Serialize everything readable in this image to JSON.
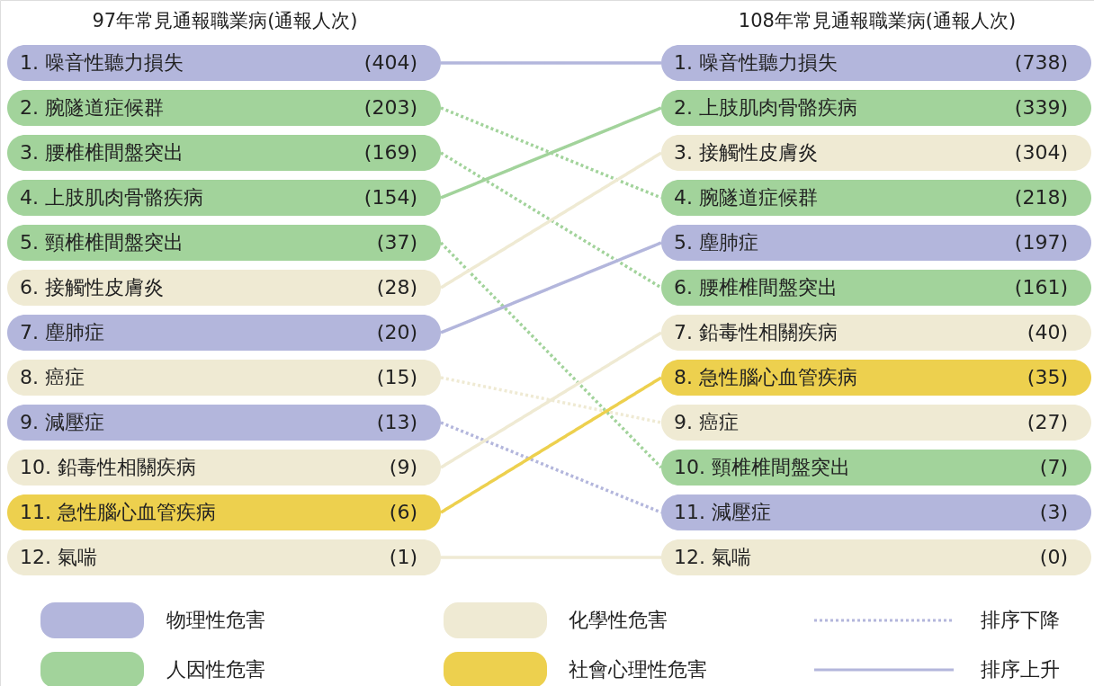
{
  "chart_data": {
    "type": "other",
    "categories": [
      "97年常見通報職業病(通報人次)",
      "108年常見通報職業病(通報人次)"
    ],
    "series": [
      {
        "name": "噪音性聽力損失",
        "color": "#b3b6dc",
        "line_style": "solid",
        "values": [
          404,
          738
        ],
        "value_labels": [
          "(404)",
          "(738)"
        ]
      },
      {
        "name": "腕隧道症候群",
        "color": "#a2d39b",
        "line_style": "dotted",
        "values": [
          203,
          218
        ],
        "value_labels": [
          "(203)",
          "(218)"
        ]
      },
      {
        "name": "腰椎椎間盤突出",
        "color": "#a2d39b",
        "line_style": "dotted",
        "values": [
          169,
          161
        ],
        "value_labels": [
          "(169)",
          "(161)"
        ]
      },
      {
        "name": "上肢肌肉骨骼疾病",
        "color": "#a2d39b",
        "line_style": "solid",
        "values": [
          154,
          339
        ],
        "value_labels": [
          "(154)",
          "(339)"
        ]
      },
      {
        "name": "頸椎椎間盤突出",
        "color": "#a2d39b",
        "line_style": "dotted",
        "values": [
          37,
          7
        ],
        "value_labels": [
          "(37)",
          "(7)"
        ]
      },
      {
        "name": "接觸性皮膚炎",
        "color": "#efead3",
        "line_style": "solid",
        "values": [
          28,
          304
        ],
        "value_labels": [
          "(28)",
          "(304)"
        ]
      },
      {
        "name": "塵肺症",
        "color": "#b3b6dc",
        "line_style": "solid",
        "values": [
          20,
          197
        ],
        "value_labels": [
          "(20)",
          "(197)"
        ]
      },
      {
        "name": "癌症",
        "color": "#efead3",
        "line_style": "dotted",
        "values": [
          15,
          27
        ],
        "value_labels": [
          "(15)",
          "(27)"
        ]
      },
      {
        "name": "減壓症",
        "color": "#b3b6dc",
        "line_style": "dotted",
        "values": [
          13,
          3
        ],
        "value_labels": [
          "(13)",
          "(3)"
        ]
      },
      {
        "name": "鉛毒性相關疾病",
        "color": "#efead3",
        "line_style": "solid",
        "values": [
          9,
          40
        ],
        "value_labels": [
          "(9)",
          "(40)"
        ]
      },
      {
        "name": "急性腦心血管疾病",
        "color": "#edd04e",
        "line_style": "solid",
        "values": [
          6,
          35
        ],
        "value_labels": [
          "(6)",
          "(35)"
        ]
      },
      {
        "name": "氣喘",
        "color": "#efead3",
        "line_style": "solid",
        "values": [
          1,
          0
        ],
        "value_labels": [
          "(1)",
          "(0)"
        ]
      }
    ],
    "annotations": [
      "1.",
      "1.",
      "2.",
      "4.",
      "3.",
      "6.",
      "4.",
      "2.",
      "5.",
      "10.",
      "6.",
      "3.",
      "7.",
      "5.",
      "8.",
      "9.",
      "9.",
      "11.",
      "10.",
      "7.",
      "11.",
      "8.",
      "12.",
      "12.",
      "物理性危害",
      "人因性危害",
      "化學性危害",
      "社會心理性危害",
      "排序下降",
      "排序上升"
    ]
  }
}
